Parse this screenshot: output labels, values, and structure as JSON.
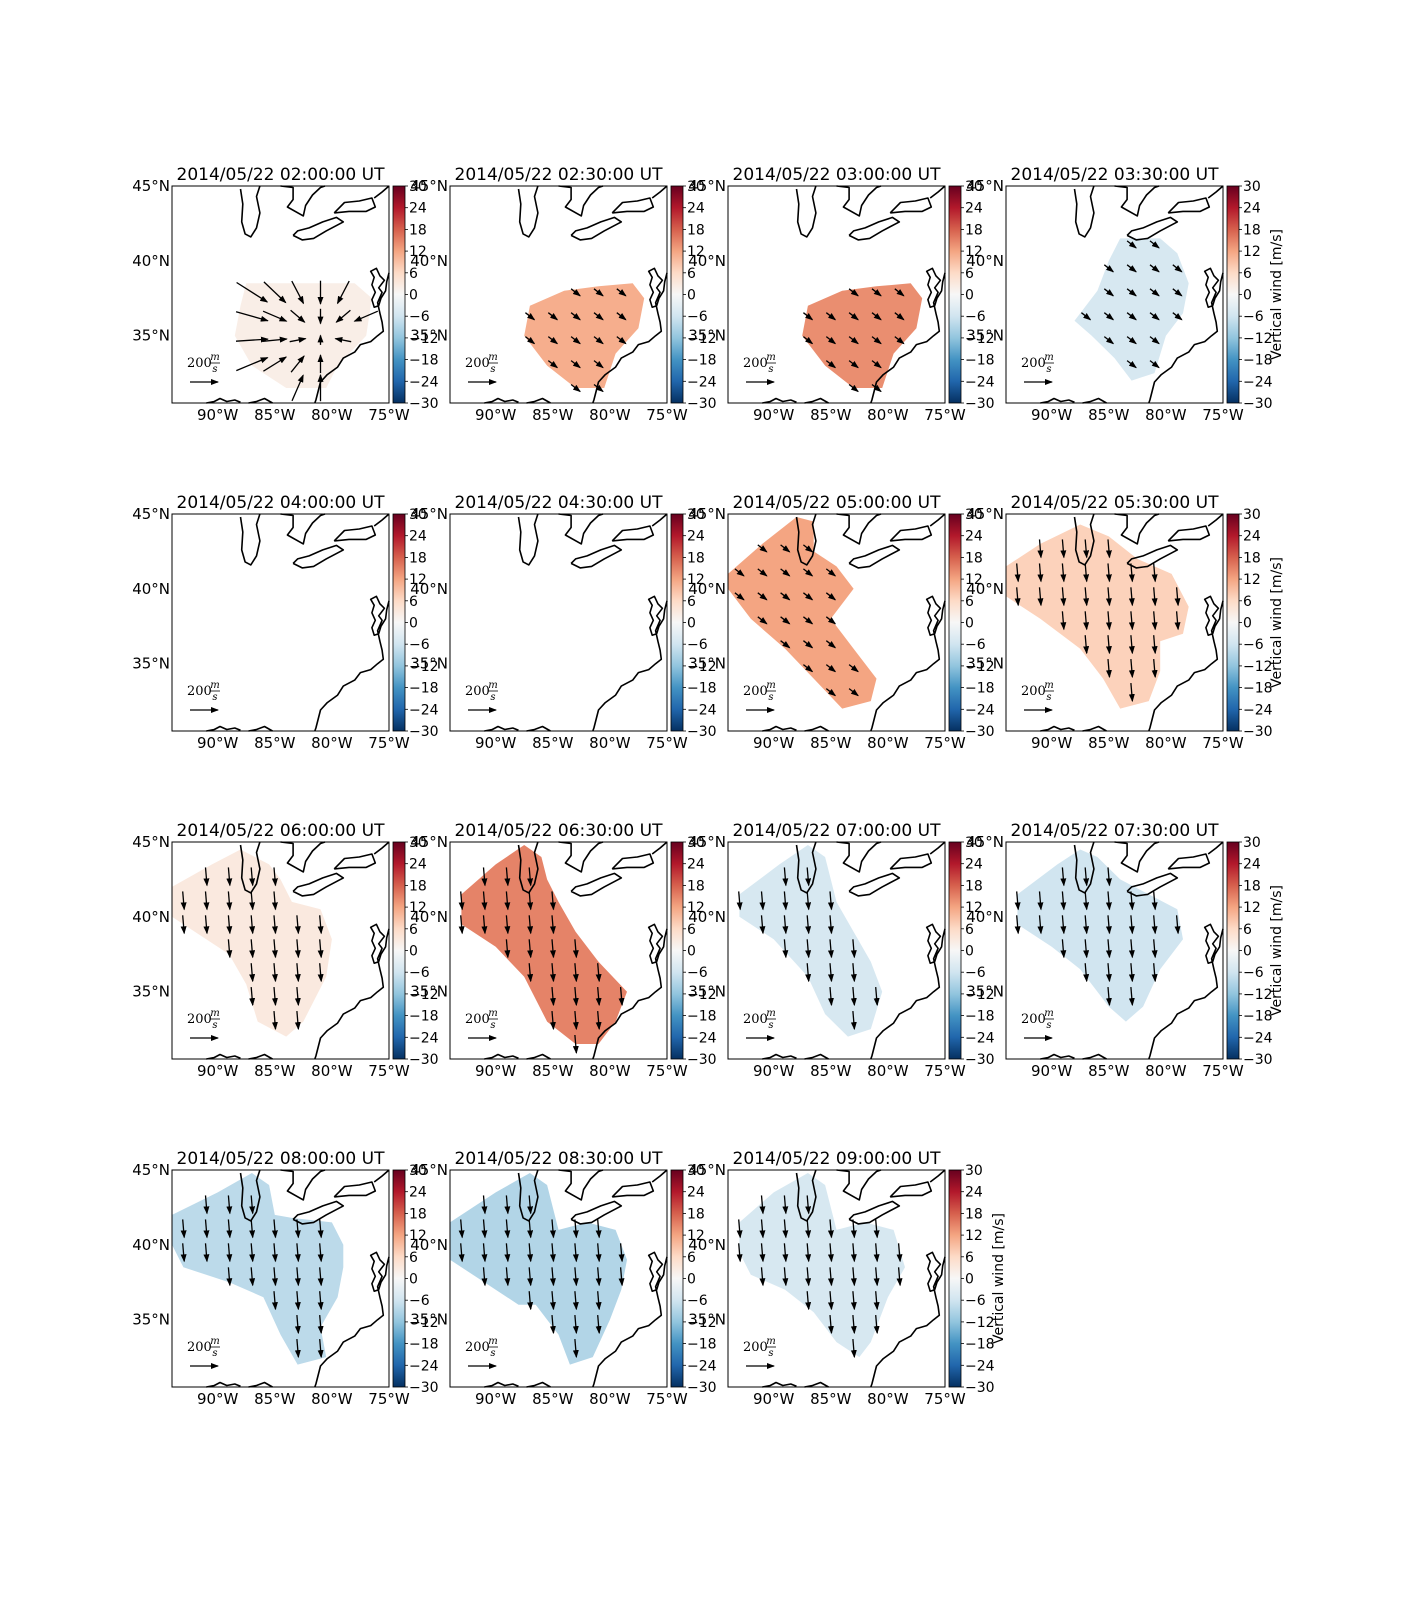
{
  "figure": {
    "colorbar_label": "Vertical wind [m/s]",
    "colorbar_ticks": [
      "30",
      "24",
      "18",
      "12",
      "6",
      "0",
      "−6",
      "−12",
      "−18",
      "−24",
      "−30"
    ],
    "lon_ticks": [
      "90°W",
      "85°W",
      "80°W",
      "75°W"
    ],
    "lat_ticks": [
      "45°N",
      "40°N",
      "35°N"
    ],
    "reference_arrow": {
      "value": "200",
      "unit_num": "m",
      "unit_den": "s"
    },
    "colormap": "RdBu_r",
    "vmin": -30,
    "vmax": 30
  },
  "panels": [
    {
      "title": "2014/05/22 02:00:00 UT",
      "vertical_wind": 2,
      "arrow_pattern": "converge"
    },
    {
      "title": "2014/05/22 02:30:00 UT",
      "vertical_wind": 11,
      "arrow_pattern": "southeast"
    },
    {
      "title": "2014/05/22 03:00:00 UT",
      "vertical_wind": 14,
      "arrow_pattern": "southeast"
    },
    {
      "title": "2014/05/22 03:30:00 UT",
      "vertical_wind": -5,
      "arrow_pattern": "southeast"
    },
    {
      "title": "2014/05/22 04:00:00 UT",
      "vertical_wind": null,
      "arrow_pattern": "none"
    },
    {
      "title": "2014/05/22 04:30:00 UT",
      "vertical_wind": null,
      "arrow_pattern": "none"
    },
    {
      "title": "2014/05/22 05:00:00 UT",
      "vertical_wind": 12,
      "arrow_pattern": "southeast"
    },
    {
      "title": "2014/05/22 05:30:00 UT",
      "vertical_wind": 7,
      "arrow_pattern": "south"
    },
    {
      "title": "2014/05/22 06:00:00 UT",
      "vertical_wind": 3,
      "arrow_pattern": "south"
    },
    {
      "title": "2014/05/22 06:30:00 UT",
      "vertical_wind": 15,
      "arrow_pattern": "south"
    },
    {
      "title": "2014/05/22 07:00:00 UT",
      "vertical_wind": -5,
      "arrow_pattern": "south"
    },
    {
      "title": "2014/05/22 07:30:00 UT",
      "vertical_wind": -6,
      "arrow_pattern": "south"
    },
    {
      "title": "2014/05/22 08:00:00 UT",
      "vertical_wind": -8,
      "arrow_pattern": "south"
    },
    {
      "title": "2014/05/22 08:30:00 UT",
      "vertical_wind": -9,
      "arrow_pattern": "south"
    },
    {
      "title": "2014/05/22 09:00:00 UT",
      "vertical_wind": -5,
      "arrow_pattern": "south"
    }
  ]
}
